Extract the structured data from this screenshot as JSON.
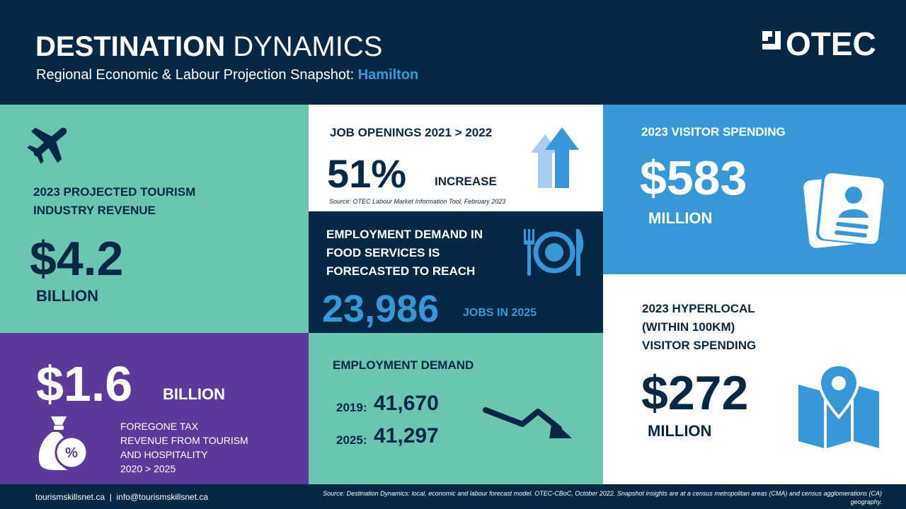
{
  "header": {
    "title_bold": "DESTINATION",
    "title_light": "DYNAMICS",
    "subtitle_prefix": "Regional Economic & Labour Projection Snapshot: ",
    "subtitle_city": "Hamilton",
    "logo_text": "OTEC"
  },
  "tourism_revenue": {
    "label_line1": "2023 PROJECTED TOURISM",
    "label_line2": "INDUSTRY REVENUE",
    "value": "$4.2",
    "unit": "BILLION",
    "icon": "airplane-icon"
  },
  "foregone_tax": {
    "value": "$1.6",
    "unit": "BILLION",
    "desc_line1": "FOREGONE TAX",
    "desc_line2": "REVENUE FROM TOURISM",
    "desc_line3": "AND HOSPITALITY",
    "desc_line4": "2020 > 2025",
    "icon": "money-bag-percent-icon"
  },
  "job_openings": {
    "label": "JOB OPENINGS  2021 > 2022",
    "value": "51%",
    "unit": "INCREASE",
    "source": "Source: OTEC Labour Market Information Tool, February 2023",
    "icon": "up-arrows-icon"
  },
  "food_services": {
    "label_line1": "EMPLOYMENT DEMAND IN",
    "label_line2": "FOOD SERVICES IS",
    "label_line3": "FORECASTED TO REACH",
    "value": "23,986",
    "unit": "JOBS IN 2025",
    "icon": "plate-fork-knife-icon"
  },
  "employment_demand": {
    "label": "EMPLOYMENT  DEMAND",
    "year1": "2019:",
    "value1": "41,670",
    "year2": "2025:",
    "value2": "41,297",
    "icon": "trend-down-arrow-icon"
  },
  "visitor_spending": {
    "label": "2023 VISITOR  SPENDING",
    "value": "$583",
    "unit": "MILLION",
    "icon": "passport-icon"
  },
  "hyperlocal": {
    "label_line1": "2023 HYPERLOCAL",
    "label_line2": "(WITHIN 100KM)",
    "label_line3": "VISITOR SPENDING",
    "value": "$272",
    "unit": "MILLION",
    "icon": "map-pin-icon"
  },
  "footer": {
    "contact": "tourismskillsnet.ca  |  info@tourismskillsnet.ca",
    "source_line1": "Source: Destination Dynamics: local, economic and labour forecast model. OTEC-CBoC, October 2022. Snapshot insights are at a census metropolitan areas (CMA) and census agglomerations (CA)",
    "source_line2": "geography."
  },
  "colors": {
    "navy": "#062847",
    "teal": "#6ac5b1",
    "purple": "#5b3a9a",
    "blue": "#3698d6",
    "accent_blue": "#3b9ad8"
  }
}
